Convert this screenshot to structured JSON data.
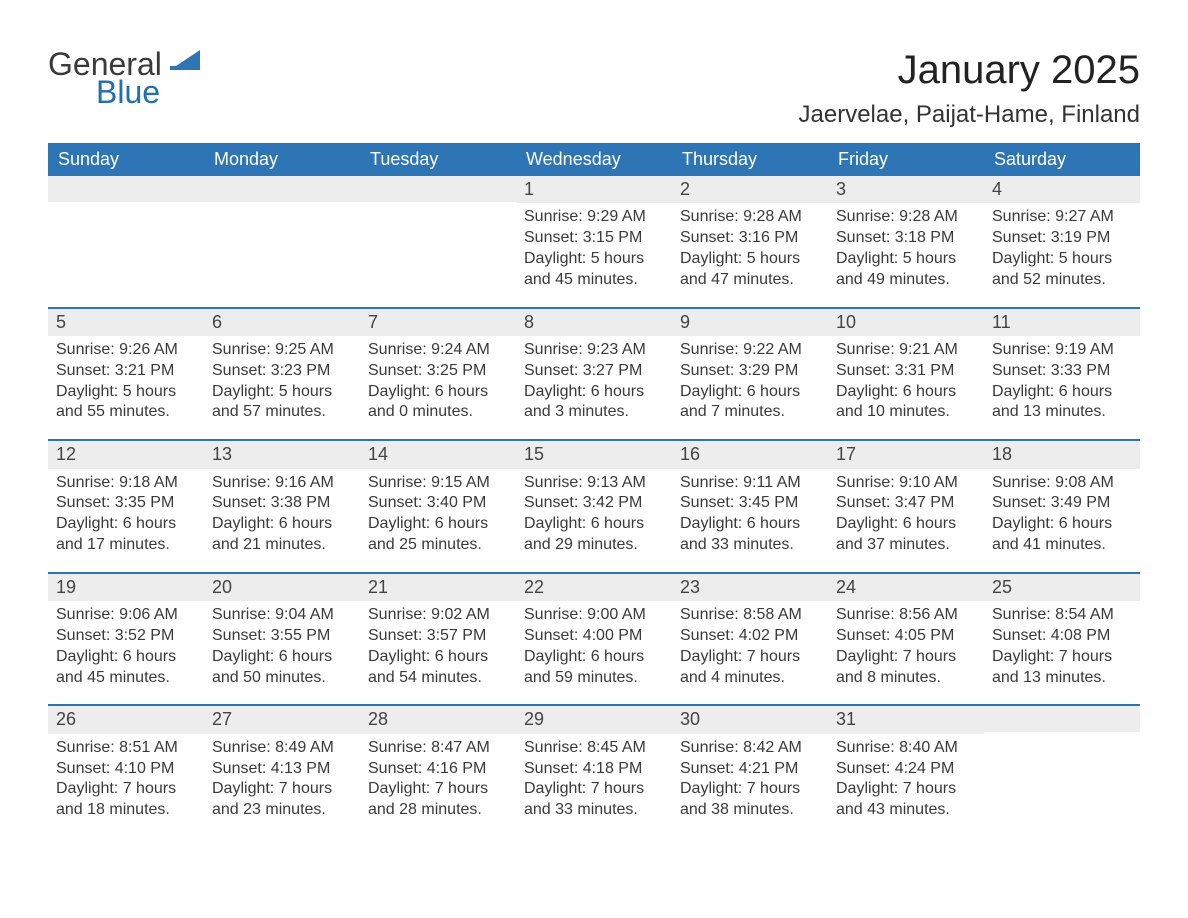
{
  "logo": {
    "word1": "General",
    "word2": "Blue",
    "color_general": "#3a3a3a",
    "color_blue": "#1f6fb2",
    "triangle_color": "#2e75b6"
  },
  "title": "January 2025",
  "location": "Jaervelae, Paijat-Hame, Finland",
  "colors": {
    "header_bg": "#2e75b6",
    "header_text": "#ffffff",
    "row_border": "#2e75b6",
    "daynum_bg": "#ededed",
    "body_text": "#3a3a3a",
    "page_bg": "#ffffff"
  },
  "fonts": {
    "title_size": 40,
    "location_size": 24,
    "header_size": 18,
    "daynum_size": 18,
    "body_size": 16
  },
  "day_headers": [
    "Sunday",
    "Monday",
    "Tuesday",
    "Wednesday",
    "Thursday",
    "Friday",
    "Saturday"
  ],
  "weeks": [
    [
      null,
      null,
      null,
      {
        "n": "1",
        "sunrise": "9:29 AM",
        "sunset": "3:15 PM",
        "dl1": "5 hours",
        "dl2": "45 minutes."
      },
      {
        "n": "2",
        "sunrise": "9:28 AM",
        "sunset": "3:16 PM",
        "dl1": "5 hours",
        "dl2": "47 minutes."
      },
      {
        "n": "3",
        "sunrise": "9:28 AM",
        "sunset": "3:18 PM",
        "dl1": "5 hours",
        "dl2": "49 minutes."
      },
      {
        "n": "4",
        "sunrise": "9:27 AM",
        "sunset": "3:19 PM",
        "dl1": "5 hours",
        "dl2": "52 minutes."
      }
    ],
    [
      {
        "n": "5",
        "sunrise": "9:26 AM",
        "sunset": "3:21 PM",
        "dl1": "5 hours",
        "dl2": "55 minutes."
      },
      {
        "n": "6",
        "sunrise": "9:25 AM",
        "sunset": "3:23 PM",
        "dl1": "5 hours",
        "dl2": "57 minutes."
      },
      {
        "n": "7",
        "sunrise": "9:24 AM",
        "sunset": "3:25 PM",
        "dl1": "6 hours",
        "dl2": "0 minutes."
      },
      {
        "n": "8",
        "sunrise": "9:23 AM",
        "sunset": "3:27 PM",
        "dl1": "6 hours",
        "dl2": "3 minutes."
      },
      {
        "n": "9",
        "sunrise": "9:22 AM",
        "sunset": "3:29 PM",
        "dl1": "6 hours",
        "dl2": "7 minutes."
      },
      {
        "n": "10",
        "sunrise": "9:21 AM",
        "sunset": "3:31 PM",
        "dl1": "6 hours",
        "dl2": "10 minutes."
      },
      {
        "n": "11",
        "sunrise": "9:19 AM",
        "sunset": "3:33 PM",
        "dl1": "6 hours",
        "dl2": "13 minutes."
      }
    ],
    [
      {
        "n": "12",
        "sunrise": "9:18 AM",
        "sunset": "3:35 PM",
        "dl1": "6 hours",
        "dl2": "17 minutes."
      },
      {
        "n": "13",
        "sunrise": "9:16 AM",
        "sunset": "3:38 PM",
        "dl1": "6 hours",
        "dl2": "21 minutes."
      },
      {
        "n": "14",
        "sunrise": "9:15 AM",
        "sunset": "3:40 PM",
        "dl1": "6 hours",
        "dl2": "25 minutes."
      },
      {
        "n": "15",
        "sunrise": "9:13 AM",
        "sunset": "3:42 PM",
        "dl1": "6 hours",
        "dl2": "29 minutes."
      },
      {
        "n": "16",
        "sunrise": "9:11 AM",
        "sunset": "3:45 PM",
        "dl1": "6 hours",
        "dl2": "33 minutes."
      },
      {
        "n": "17",
        "sunrise": "9:10 AM",
        "sunset": "3:47 PM",
        "dl1": "6 hours",
        "dl2": "37 minutes."
      },
      {
        "n": "18",
        "sunrise": "9:08 AM",
        "sunset": "3:49 PM",
        "dl1": "6 hours",
        "dl2": "41 minutes."
      }
    ],
    [
      {
        "n": "19",
        "sunrise": "9:06 AM",
        "sunset": "3:52 PM",
        "dl1": "6 hours",
        "dl2": "45 minutes."
      },
      {
        "n": "20",
        "sunrise": "9:04 AM",
        "sunset": "3:55 PM",
        "dl1": "6 hours",
        "dl2": "50 minutes."
      },
      {
        "n": "21",
        "sunrise": "9:02 AM",
        "sunset": "3:57 PM",
        "dl1": "6 hours",
        "dl2": "54 minutes."
      },
      {
        "n": "22",
        "sunrise": "9:00 AM",
        "sunset": "4:00 PM",
        "dl1": "6 hours",
        "dl2": "59 minutes."
      },
      {
        "n": "23",
        "sunrise": "8:58 AM",
        "sunset": "4:02 PM",
        "dl1": "7 hours",
        "dl2": "4 minutes."
      },
      {
        "n": "24",
        "sunrise": "8:56 AM",
        "sunset": "4:05 PM",
        "dl1": "7 hours",
        "dl2": "8 minutes."
      },
      {
        "n": "25",
        "sunrise": "8:54 AM",
        "sunset": "4:08 PM",
        "dl1": "7 hours",
        "dl2": "13 minutes."
      }
    ],
    [
      {
        "n": "26",
        "sunrise": "8:51 AM",
        "sunset": "4:10 PM",
        "dl1": "7 hours",
        "dl2": "18 minutes."
      },
      {
        "n": "27",
        "sunrise": "8:49 AM",
        "sunset": "4:13 PM",
        "dl1": "7 hours",
        "dl2": "23 minutes."
      },
      {
        "n": "28",
        "sunrise": "8:47 AM",
        "sunset": "4:16 PM",
        "dl1": "7 hours",
        "dl2": "28 minutes."
      },
      {
        "n": "29",
        "sunrise": "8:45 AM",
        "sunset": "4:18 PM",
        "dl1": "7 hours",
        "dl2": "33 minutes."
      },
      {
        "n": "30",
        "sunrise": "8:42 AM",
        "sunset": "4:21 PM",
        "dl1": "7 hours",
        "dl2": "38 minutes."
      },
      {
        "n": "31",
        "sunrise": "8:40 AM",
        "sunset": "4:24 PM",
        "dl1": "7 hours",
        "dl2": "43 minutes."
      },
      null
    ]
  ],
  "labels": {
    "sunrise": "Sunrise:",
    "sunset": "Sunset:",
    "daylight": "Daylight:",
    "and": "and"
  }
}
